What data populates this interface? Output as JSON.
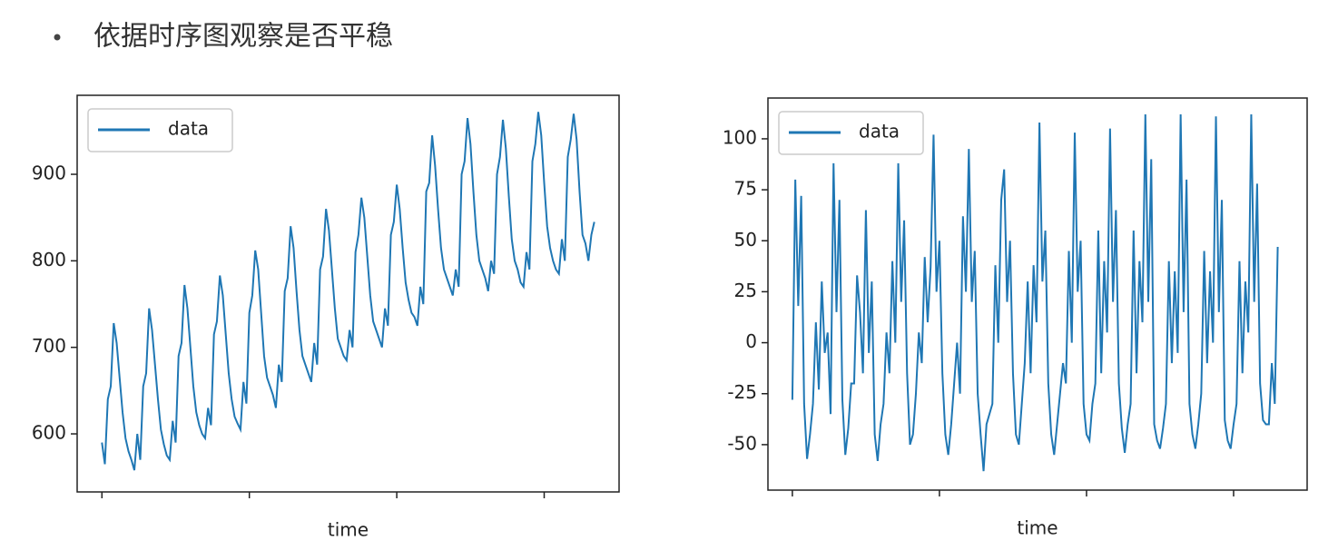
{
  "heading": "依据时序图观察是否平稳",
  "chart_data": [
    {
      "type": "line",
      "xlabel": "time",
      "legend": "upper left",
      "grid": false,
      "xlim": [
        -8.4,
        175.4
      ],
      "xticks": [
        0,
        50,
        100,
        150
      ],
      "ylim": [
        532.9,
        991.3
      ],
      "yticks": [
        600,
        700,
        800,
        900
      ],
      "series": [
        {
          "name": "data",
          "color": "#1f77b4",
          "values": [
            590,
            565,
            640,
            655,
            728,
            705,
            665,
            625,
            595,
            580,
            570,
            558,
            600,
            570,
            655,
            670,
            745,
            720,
            680,
            640,
            605,
            588,
            575,
            570,
            615,
            590,
            690,
            705,
            772,
            745,
            700,
            655,
            625,
            610,
            600,
            595,
            630,
            610,
            715,
            730,
            783,
            760,
            715,
            670,
            640,
            620,
            612,
            605,
            660,
            635,
            740,
            760,
            812,
            790,
            740,
            690,
            665,
            655,
            645,
            630,
            680,
            660,
            765,
            780,
            840,
            815,
            765,
            720,
            690,
            680,
            670,
            660,
            705,
            680,
            790,
            805,
            860,
            835,
            790,
            745,
            710,
            700,
            690,
            685,
            720,
            700,
            810,
            830,
            873,
            850,
            805,
            760,
            730,
            720,
            710,
            700,
            745,
            725,
            830,
            845,
            888,
            860,
            815,
            775,
            755,
            740,
            735,
            725,
            770,
            750,
            880,
            890,
            945,
            910,
            860,
            815,
            790,
            780,
            770,
            760,
            790,
            770,
            900,
            915,
            965,
            935,
            880,
            830,
            800,
            790,
            780,
            765,
            800,
            785,
            900,
            920,
            963,
            930,
            875,
            825,
            800,
            790,
            775,
            770,
            810,
            790,
            915,
            935,
            972,
            945,
            890,
            840,
            815,
            800,
            790,
            785,
            825,
            800,
            920,
            940,
            970,
            940,
            880,
            830,
            820,
            800,
            830,
            845
          ]
        }
      ]
    },
    {
      "type": "line",
      "xlabel": "time",
      "legend": "upper left",
      "grid": false,
      "xlim": [
        -8.3,
        175
      ],
      "xticks": [
        0,
        50,
        100,
        150
      ],
      "ylim": [
        -72.3,
        120
      ],
      "yticks": [
        -50,
        -25,
        0,
        25,
        50,
        75,
        100
      ],
      "series": [
        {
          "name": "data",
          "color": "#1f77b4",
          "values": [
            -28,
            80,
            18,
            72,
            -30,
            -57,
            -45,
            -30,
            10,
            -23,
            30,
            -5,
            5,
            -35,
            88,
            15,
            70,
            -28,
            -55,
            -42,
            -20,
            -20,
            33,
            15,
            -15,
            65,
            -5,
            30,
            -45,
            -58,
            -40,
            -30,
            5,
            -15,
            40,
            0,
            88,
            20,
            60,
            -15,
            -50,
            -45,
            -25,
            5,
            -10,
            42,
            10,
            37,
            102,
            25,
            50,
            -15,
            -45,
            -55,
            -40,
            -20,
            0,
            -25,
            62,
            25,
            95,
            20,
            45,
            -25,
            -45,
            -63,
            -40,
            -35,
            -30,
            38,
            0,
            70,
            85,
            20,
            50,
            -15,
            -45,
            -50,
            -30,
            -10,
            30,
            -15,
            38,
            10,
            108,
            30,
            55,
            -20,
            -45,
            -55,
            -40,
            -25,
            -10,
            -20,
            45,
            0,
            103,
            25,
            50,
            -30,
            -45,
            -48,
            -30,
            -20,
            55,
            -15,
            40,
            5,
            105,
            20,
            65,
            -20,
            -42,
            -54,
            -40,
            -30,
            55,
            -15,
            40,
            10,
            112,
            20,
            90,
            -40,
            -48,
            -52,
            -42,
            -30,
            40,
            -10,
            35,
            -5,
            112,
            15,
            80,
            -30,
            -45,
            -52,
            -40,
            -25,
            45,
            -10,
            35,
            0,
            111,
            15,
            70,
            -38,
            -48,
            -52,
            -40,
            -30,
            40,
            -15,
            30,
            5,
            112,
            20,
            78,
            -20,
            -38,
            -40,
            -40,
            -10,
            -30,
            47
          ]
        }
      ]
    }
  ]
}
